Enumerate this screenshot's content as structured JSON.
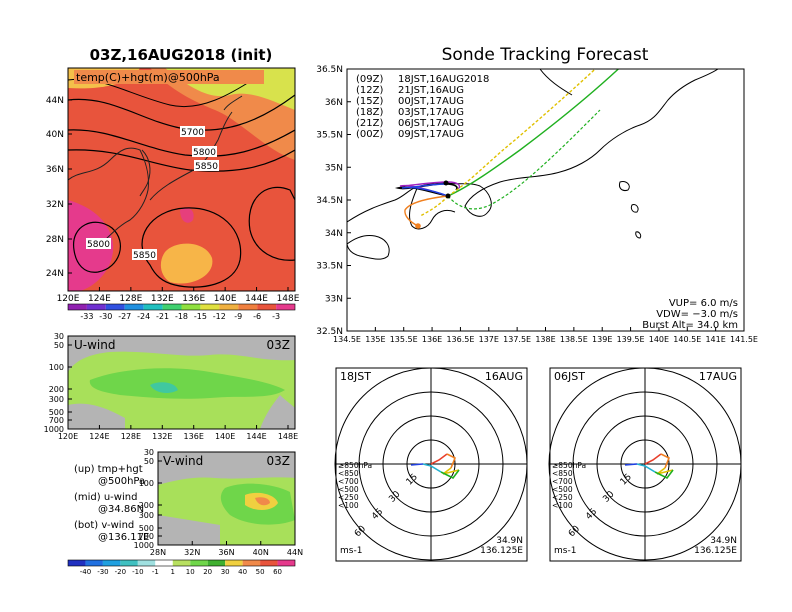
{
  "colors": {
    "temp_fill": "#e8543c",
    "temp_warm": "#f08a4a",
    "temp_hot": "#f7b548",
    "temp_cool": "#d8e24c",
    "temp_magenta": "#e53a8c",
    "wind_green": "#6fd64a",
    "wind_light": "#a8e05a",
    "wind_gray": "#b4b4b4",
    "track_09z": "#000000",
    "track_12z": "#a020c0",
    "track_15z": "#2040e0",
    "track_18z": "#20b020",
    "track_21z": "#e0c000",
    "track_00z": "#f08020"
  },
  "left": {
    "map_title": "03Z,16AUG2018 (init)",
    "map_label": "temp(C)+hgt(m)@500hPa",
    "contour_labels": [
      "5700",
      "5800",
      "5850",
      "5800",
      "5850"
    ],
    "lat_ticks": [
      "44N",
      "40N",
      "36N",
      "32N",
      "28N",
      "24N"
    ],
    "lon_ticks": [
      "120E",
      "124E",
      "128E",
      "132E",
      "136E",
      "140E",
      "144E",
      "148E"
    ],
    "temp_scale": [
      "-33",
      "-30",
      "-27",
      "-24",
      "-21",
      "-18",
      "-15",
      "-12",
      "-9",
      "-6",
      "-3"
    ],
    "u_label": "U-wind",
    "u_time": "03Z",
    "u_pressure_ticks": [
      "30",
      "50",
      "100",
      "200",
      "300",
      "500",
      "700",
      "1000"
    ],
    "u_lon_ticks": [
      "120E",
      "124E",
      "128E",
      "132E",
      "136E",
      "140E",
      "144E",
      "148E"
    ],
    "v_label": "V-wind",
    "v_time": "03Z",
    "v_pressure_ticks": [
      "30",
      "50",
      "100",
      "200",
      "300",
      "500",
      "700",
      "1000"
    ],
    "v_lat_ticks": [
      "28N",
      "32N",
      "36N",
      "40N",
      "44N"
    ],
    "legend": {
      "up_1": "(up) tmp+hgt",
      "up_2": "@500hPa",
      "mid_1": "(mid) u-wind",
      "mid_2": "@34.86N",
      "bot_1": "(bot) v-wind",
      "bot_2": "@136.11E"
    },
    "wind_scale": [
      "-40",
      "-30",
      "-20",
      "-10",
      "-1",
      "1",
      "10",
      "20",
      "30",
      "40",
      "50",
      "60"
    ]
  },
  "track": {
    "title": "Sonde Tracking Forecast",
    "lat_ticks": [
      "36.5N",
      "36N",
      "35.5N",
      "35N",
      "34.5N",
      "34N",
      "33.5N",
      "33N",
      "32.5N"
    ],
    "lon_ticks": [
      "134.5E",
      "135E",
      "135.5E",
      "136E",
      "136.5E",
      "137E",
      "137.5E",
      "138E",
      "138.5E",
      "139E",
      "139.5E",
      "140E",
      "140.5E",
      "141E",
      "141.5E"
    ],
    "launches": [
      {
        "code": "(09Z)",
        "time": "18JST,16AUG2018"
      },
      {
        "code": "(12Z)",
        "time": "21JST,16AUG"
      },
      {
        "code": "(15Z)",
        "time": "00JST,17AUG"
      },
      {
        "code": "(18Z)",
        "time": "03JST,17AUG"
      },
      {
        "code": "(21Z)",
        "time": "06JST,17AUG"
      },
      {
        "code": "(00Z)",
        "time": "09JST,17AUG"
      }
    ],
    "vup": "VUP=  6.0 m/s",
    "vdw": "VDW= −3.0 m/s",
    "burst": "Burst Alt=  34.0 km"
  },
  "hodo1": {
    "time": "18JST",
    "date": "16AUG",
    "ring_labels": [
      "15",
      "30",
      "45",
      "60"
    ],
    "levels": [
      "≥850hPa",
      "<850",
      "<700",
      "<500",
      "<250",
      "<100"
    ],
    "unit": "ms-1",
    "lat": "34.9N",
    "lon": "136.125E"
  },
  "hodo2": {
    "time": "06JST",
    "date": "17AUG",
    "ring_labels": [
      "15",
      "30",
      "45",
      "60"
    ],
    "levels": [
      "≥850hPa",
      "<850",
      "<700",
      "<500",
      "<250",
      "<100"
    ],
    "unit": "ms-1",
    "lat": "34.9N",
    "lon": "136.125E"
  }
}
